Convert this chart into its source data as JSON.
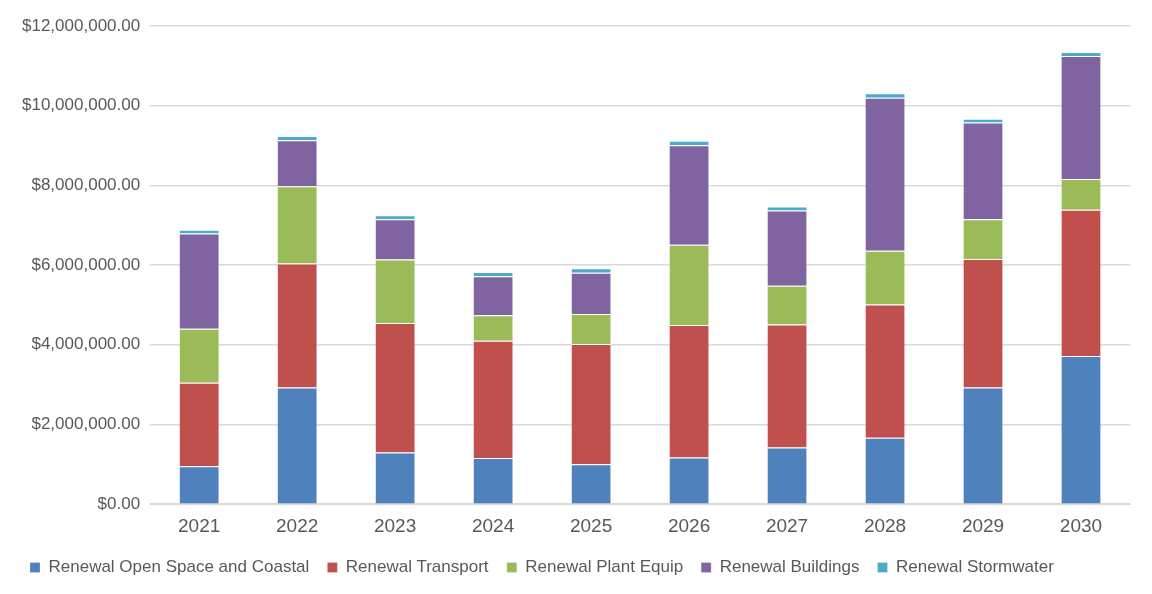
{
  "chart_data": {
    "type": "bar",
    "stacked": true,
    "categories": [
      "2021",
      "2022",
      "2023",
      "2024",
      "2025",
      "2026",
      "2027",
      "2028",
      "2029",
      "2030"
    ],
    "series": [
      {
        "name": "Renewal Open Space and Coastal",
        "color": "#4f81bd",
        "values": [
          950000,
          2930000,
          1300000,
          1160000,
          1000000,
          1170000,
          1420000,
          1670000,
          2930000,
          3720000
        ]
      },
      {
        "name": "Renewal Transport",
        "color": "#c0504d",
        "values": [
          2100000,
          3110000,
          3250000,
          2940000,
          3020000,
          3330000,
          3090000,
          3340000,
          3220000,
          3670000
        ]
      },
      {
        "name": "Renewal Plant Equip",
        "color": "#9bbb59",
        "values": [
          1350000,
          1940000,
          1590000,
          640000,
          750000,
          2010000,
          970000,
          1350000,
          1000000,
          770000
        ]
      },
      {
        "name": "Renewal Buildings",
        "color": "#8064a2",
        "values": [
          2390000,
          1150000,
          1010000,
          980000,
          1040000,
          2500000,
          1890000,
          3840000,
          2430000,
          3090000
        ]
      },
      {
        "name": "Renewal Stormwater",
        "color": "#4bacc6",
        "values": [
          100000,
          110000,
          100000,
          110000,
          110000,
          110000,
          100000,
          110000,
          90000,
          100000
        ]
      }
    ],
    "ylim": [
      0,
      12000000
    ],
    "yticks": [
      {
        "value": 0,
        "label": "$0.00"
      },
      {
        "value": 2000000,
        "label": "$2,000,000.00"
      },
      {
        "value": 4000000,
        "label": "$4,000,000.00"
      },
      {
        "value": 6000000,
        "label": "$6,000,000.00"
      },
      {
        "value": 8000000,
        "label": "$8,000,000.00"
      },
      {
        "value": 10000000,
        "label": "$10,000,000.00"
      },
      {
        "value": 12000000,
        "label": "$12,000,000.00"
      }
    ],
    "grid": "y",
    "legend": "bottom"
  }
}
